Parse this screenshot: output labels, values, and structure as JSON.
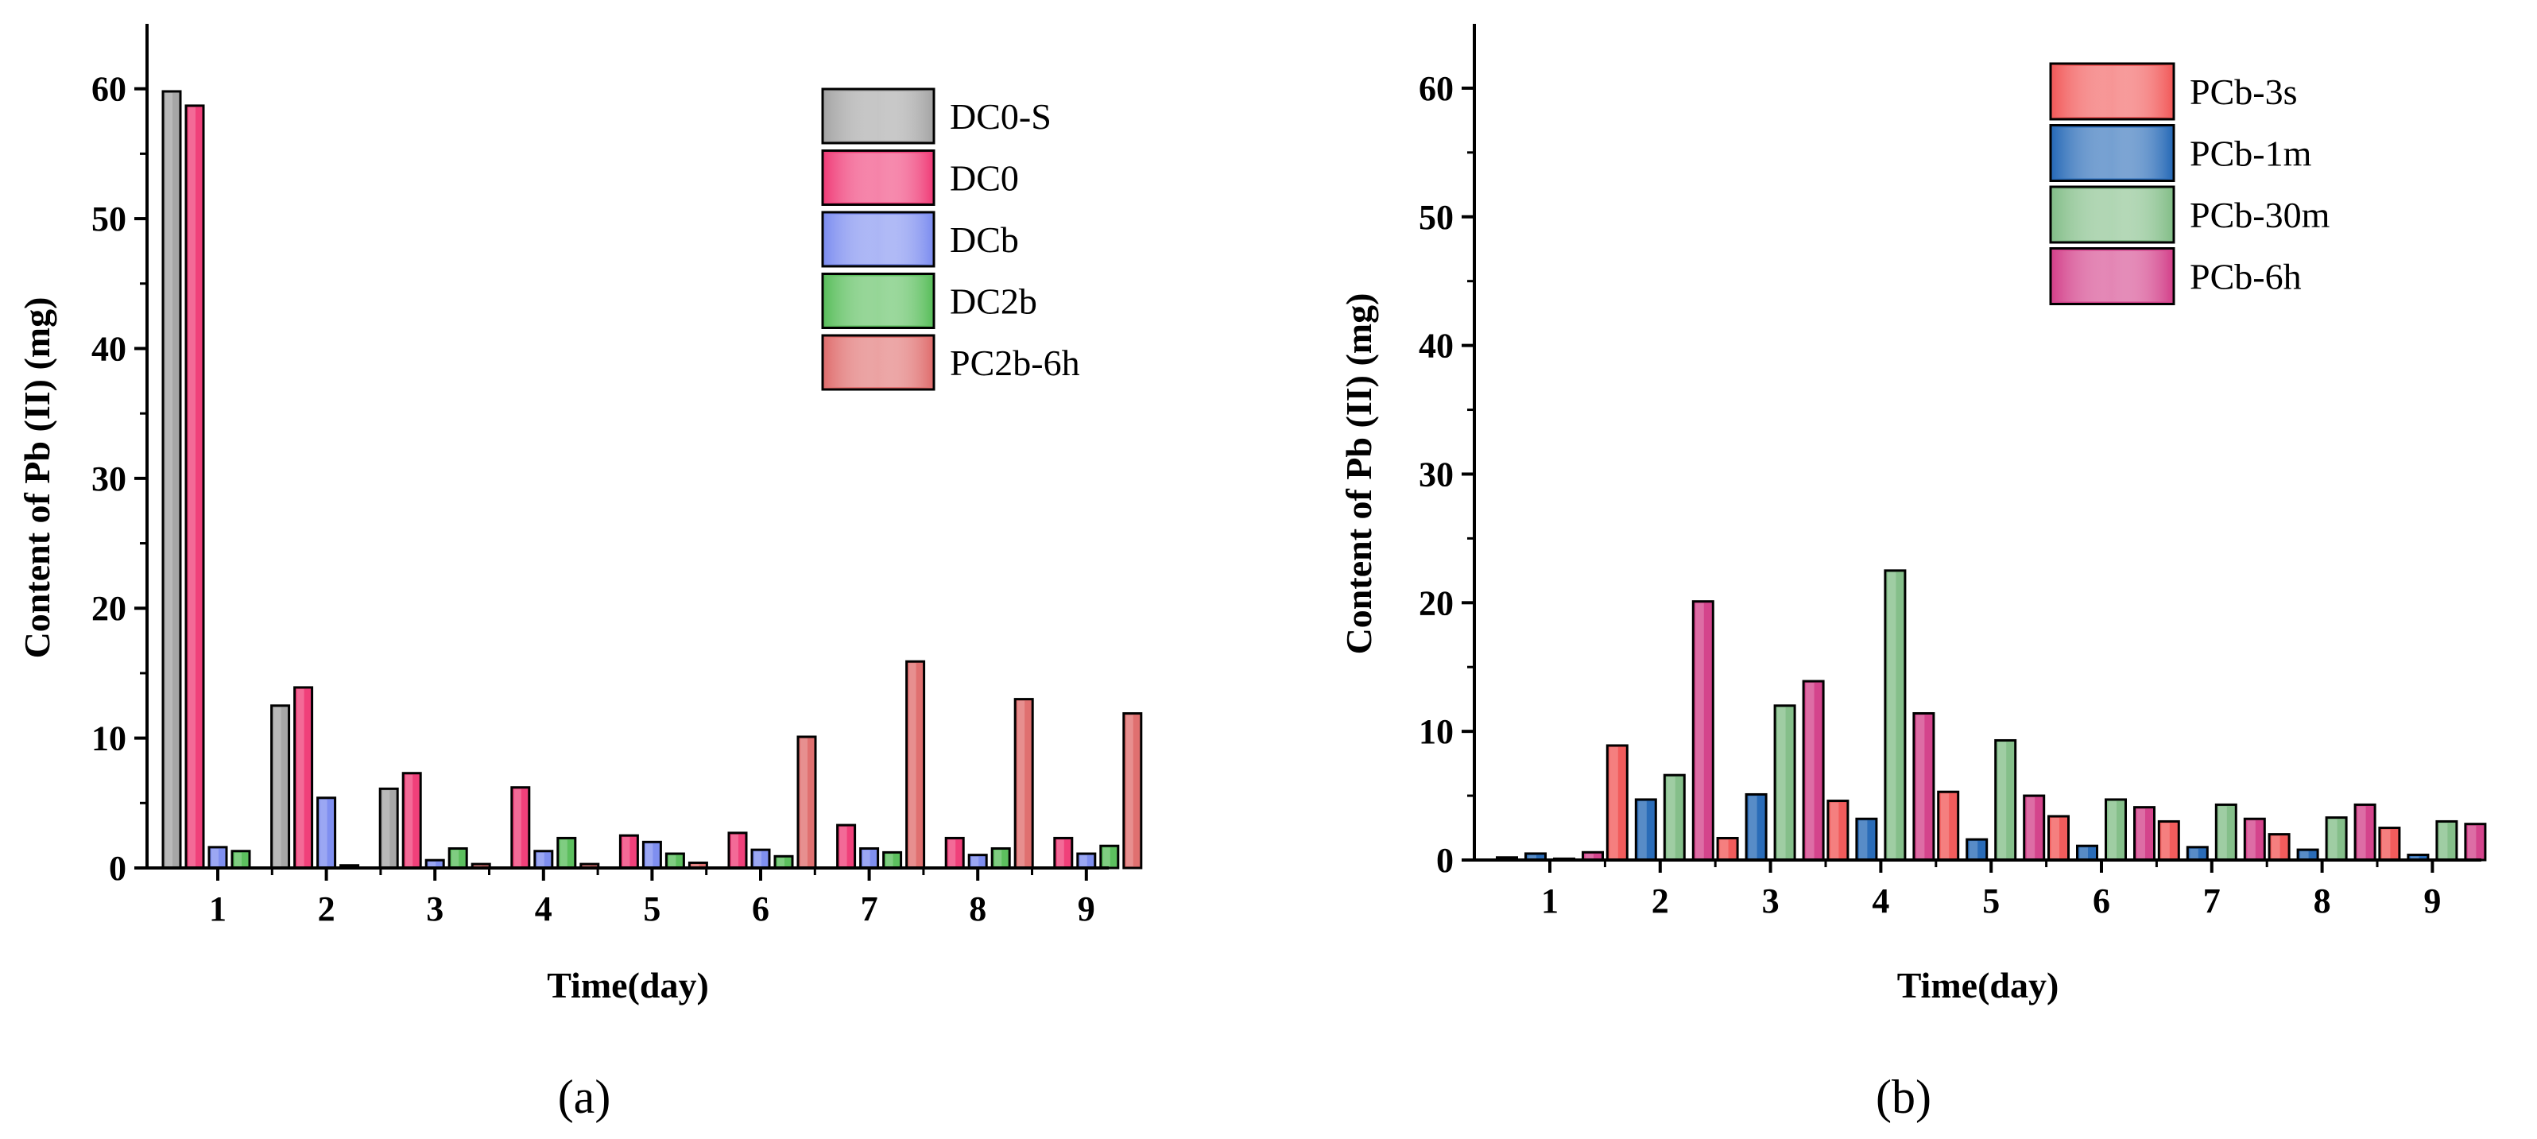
{
  "chart_data": [
    {
      "type": "bar",
      "panel_label": "(a)",
      "xlabel": "Time(day)",
      "ylabel": "Content of Pb (II) (mg)",
      "ylim": [
        0,
        65
      ],
      "yticks": [
        0,
        10,
        20,
        30,
        40,
        50,
        60
      ],
      "categories": [
        "1",
        "2",
        "3",
        "4",
        "5",
        "6",
        "7",
        "8",
        "9"
      ],
      "legend_position": "top-right",
      "series": [
        {
          "name": "DC0-S",
          "color": "#a6a6a6",
          "values": [
            59.8,
            12.5,
            6.1,
            0,
            0,
            0,
            0,
            0,
            0
          ]
        },
        {
          "name": "DC0",
          "color": "#f0407a",
          "values": [
            58.7,
            13.9,
            7.3,
            6.2,
            2.5,
            2.7,
            3.3,
            2.3,
            2.3
          ]
        },
        {
          "name": "DCb",
          "color": "#7f8ff0",
          "values": [
            1.6,
            5.4,
            0.6,
            1.3,
            2.0,
            1.4,
            1.5,
            1.0,
            1.1
          ]
        },
        {
          "name": "DC2b",
          "color": "#5cbf5e",
          "values": [
            1.3,
            0.2,
            1.5,
            2.3,
            1.1,
            0.9,
            1.2,
            1.5,
            1.7
          ]
        },
        {
          "name": "PC2b-6h",
          "color": "#e07070",
          "values": [
            0,
            0,
            0.3,
            0.3,
            0.4,
            10.1,
            15.9,
            13.0,
            11.9
          ]
        }
      ]
    },
    {
      "type": "bar",
      "panel_label": "(b)",
      "xlabel": "Time(day)",
      "ylabel": "Content of Pb (II) (mg)",
      "ylim": [
        0,
        65
      ],
      "yticks": [
        0,
        10,
        20,
        30,
        40,
        50,
        60
      ],
      "categories": [
        "1",
        "2",
        "3",
        "4",
        "5",
        "6",
        "7",
        "8",
        "9"
      ],
      "legend_position": "top-right",
      "series": [
        {
          "name": "PCb-3s",
          "color": "#f25c5c",
          "values": [
            0.2,
            8.9,
            1.7,
            4.6,
            5.3,
            3.4,
            3.0,
            2.0,
            2.5
          ]
        },
        {
          "name": "PCb-1m",
          "color": "#2a6cb8",
          "values": [
            0.5,
            4.7,
            5.1,
            3.2,
            1.6,
            1.1,
            1.0,
            0.8,
            0.4
          ]
        },
        {
          "name": "PCb-30m",
          "color": "#85bf8a",
          "values": [
            0.1,
            6.6,
            12.0,
            22.5,
            9.3,
            4.7,
            4.3,
            3.3,
            3.0
          ]
        },
        {
          "name": "PCb-6h",
          "color": "#d4448c",
          "values": [
            0.6,
            20.1,
            13.9,
            11.4,
            5.0,
            4.1,
            3.2,
            4.3,
            2.8
          ]
        }
      ]
    }
  ]
}
